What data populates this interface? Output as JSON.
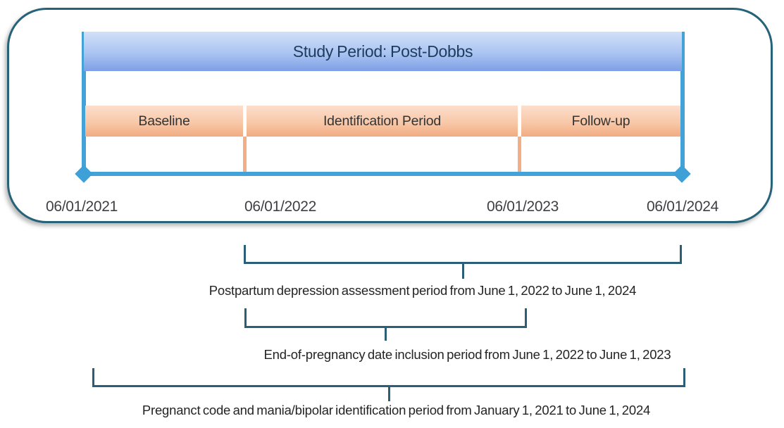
{
  "figure": {
    "title": "Study Period: Post-Dobbs",
    "segments": [
      {
        "label": "Baseline"
      },
      {
        "label": "Identification Period"
      },
      {
        "label": "Follow-up"
      }
    ],
    "axis_dates": [
      "06/01/2021",
      "06/01/2022",
      "06/01/2023",
      "06/01/2024"
    ],
    "annotations": [
      {
        "label": "Postpartum depression assessment period from June 1, 2022 to June 1, 2024"
      },
      {
        "label": "End-of-pregnancy date inclusion period from June 1, 2022 to June 1, 2023"
      },
      {
        "label": "Pregnanct code and mania/bipolar identification period from January 1, 2021 to June 1, 2024"
      }
    ],
    "colors": {
      "box_border": "#266378",
      "header_gradient_top": "#d2e0f8",
      "header_gradient_bottom": "#7e9fe6",
      "header_text": "#1d3c5e",
      "timeline_blue": "#43a2d8",
      "segment_gradient_top": "#fcdecd",
      "segment_gradient_bottom": "#f1ab81",
      "segment_tick": "#f2ae85",
      "bracket": "#2b5f77",
      "annotation_text": "#242424",
      "date_text": "#3f3f43"
    }
  }
}
